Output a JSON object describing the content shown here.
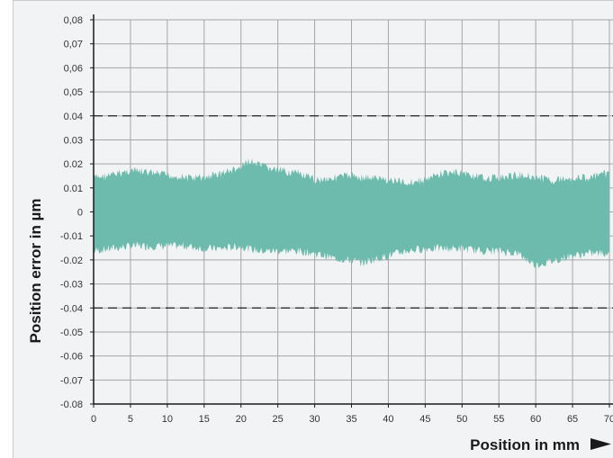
{
  "chart_data": {
    "type": "area",
    "xlabel": "Position in mm",
    "ylabel": "Position error in µm",
    "xlim": [
      0,
      70
    ],
    "ylim": [
      -0.08,
      0.08
    ],
    "x_ticks": [
      0,
      5,
      10,
      15,
      20,
      25,
      30,
      35,
      40,
      45,
      50,
      55,
      60,
      65,
      70
    ],
    "x_tick_labels": [
      "0",
      "5",
      "10",
      "15",
      "20",
      "25",
      "30",
      "35",
      "40",
      "45",
      "50",
      "55",
      "60",
      "65",
      "70"
    ],
    "y_ticks": [
      0.08,
      0.07,
      0.06,
      0.05,
      0.04,
      0.03,
      0.02,
      0.01,
      0,
      -0.01,
      -0.02,
      -0.03,
      -0.04,
      -0.05,
      -0.06,
      -0.07,
      -0.08
    ],
    "y_tick_labels": [
      "0,08",
      "0,07",
      "0,06",
      "0,05",
      "0.04",
      "0.03",
      "0.02",
      "0.01",
      "0",
      "-0.01",
      "-0.02",
      "-0.03",
      "-0.04",
      "-0.05",
      "-0.06",
      "-0.07",
      "-0.08"
    ],
    "grid": true,
    "limit_lines": [
      0.04,
      -0.04
    ],
    "series": [
      {
        "x": [
          0,
          2.5,
          5,
          7.5,
          10,
          12.5,
          15,
          17.5,
          20,
          21,
          22.5,
          25,
          27.5,
          30,
          32.5,
          35,
          36.5,
          37.5,
          40,
          42.5,
          45,
          47.5,
          50,
          52.5,
          55,
          57.5,
          59,
          60,
          62.5,
          65,
          67.5,
          70
        ],
        "upper": [
          0.016,
          0.017,
          0.019,
          0.018,
          0.017,
          0.016,
          0.016,
          0.018,
          0.02,
          0.023,
          0.021,
          0.019,
          0.018,
          0.015,
          0.016,
          0.017,
          0.016,
          0.016,
          0.015,
          0.014,
          0.015,
          0.018,
          0.018,
          0.016,
          0.016,
          0.017,
          0.017,
          0.016,
          0.015,
          0.016,
          0.016,
          0.018
        ],
        "lower": [
          -0.018,
          -0.017,
          -0.016,
          -0.016,
          -0.016,
          -0.016,
          -0.017,
          -0.017,
          -0.016,
          -0.017,
          -0.018,
          -0.018,
          -0.018,
          -0.019,
          -0.021,
          -0.022,
          -0.023,
          -0.022,
          -0.02,
          -0.018,
          -0.017,
          -0.017,
          -0.017,
          -0.018,
          -0.018,
          -0.019,
          -0.022,
          -0.024,
          -0.022,
          -0.02,
          -0.019,
          -0.019
        ],
        "color": "#6dbbad"
      }
    ]
  },
  "colors": {
    "band": "#6dbbad",
    "grid": "#a3a6a9",
    "background": "#f2f3f4",
    "axis": "#1a1a1a"
  }
}
